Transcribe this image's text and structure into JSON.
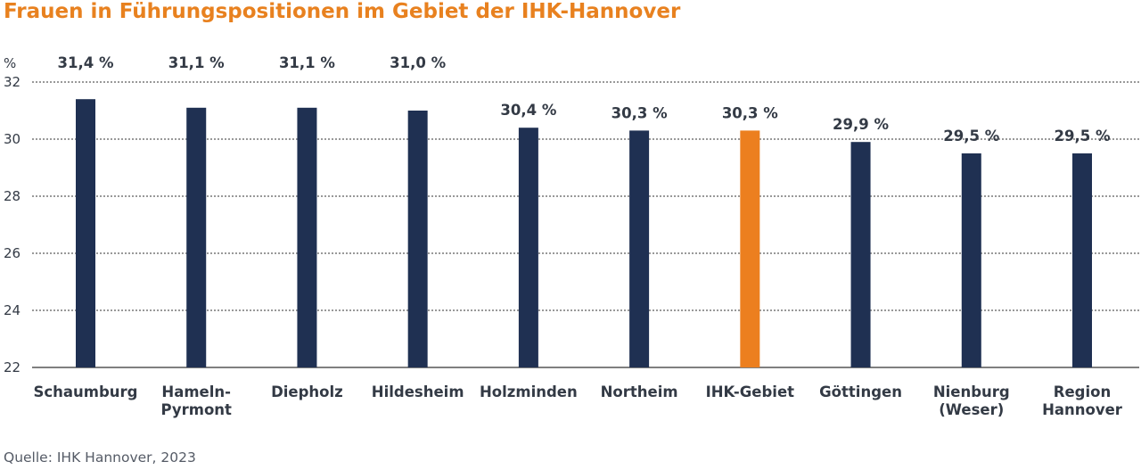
{
  "title": "Frauen in Führungspositionen im Gebiet der IHK-Hannover",
  "source": "Quelle: IHK Hannover, 2023",
  "colors": {
    "bar": "#1f3052",
    "highlight": "#ec7f1f",
    "title": "#e8811f",
    "grid": "#333333"
  },
  "chart_data": {
    "type": "bar",
    "title": "Frauen in Führungspositionen im Gebiet der IHK-Hannover",
    "ylabel": "%",
    "ylim": [
      22,
      32
    ],
    "yticks": [
      "22",
      "24",
      "26",
      "28",
      "30",
      "32"
    ],
    "grid": true,
    "categories": [
      [
        "Schaumburg"
      ],
      [
        "Hameln-",
        "Pyrmont"
      ],
      [
        "Diepholz"
      ],
      [
        "Hildesheim"
      ],
      [
        "Holzminden"
      ],
      [
        "Northeim"
      ],
      [
        "IHK-Gebiet"
      ],
      [
        "Göttingen"
      ],
      [
        "Nienburg",
        "(Weser)"
      ],
      [
        "Region",
        "Hannover"
      ]
    ],
    "values": [
      31.4,
      31.1,
      31.1,
      31.0,
      30.4,
      30.3,
      30.3,
      29.9,
      29.5,
      29.5
    ],
    "value_labels": [
      "31,4 %",
      "31,1 %",
      "31,1 %",
      "31,0 %",
      "30,4 %",
      "30,3 %",
      "30,3 %",
      "29,9 %",
      "29,5 %",
      "29,5 %"
    ],
    "highlight": "IHK-Gebiet"
  }
}
